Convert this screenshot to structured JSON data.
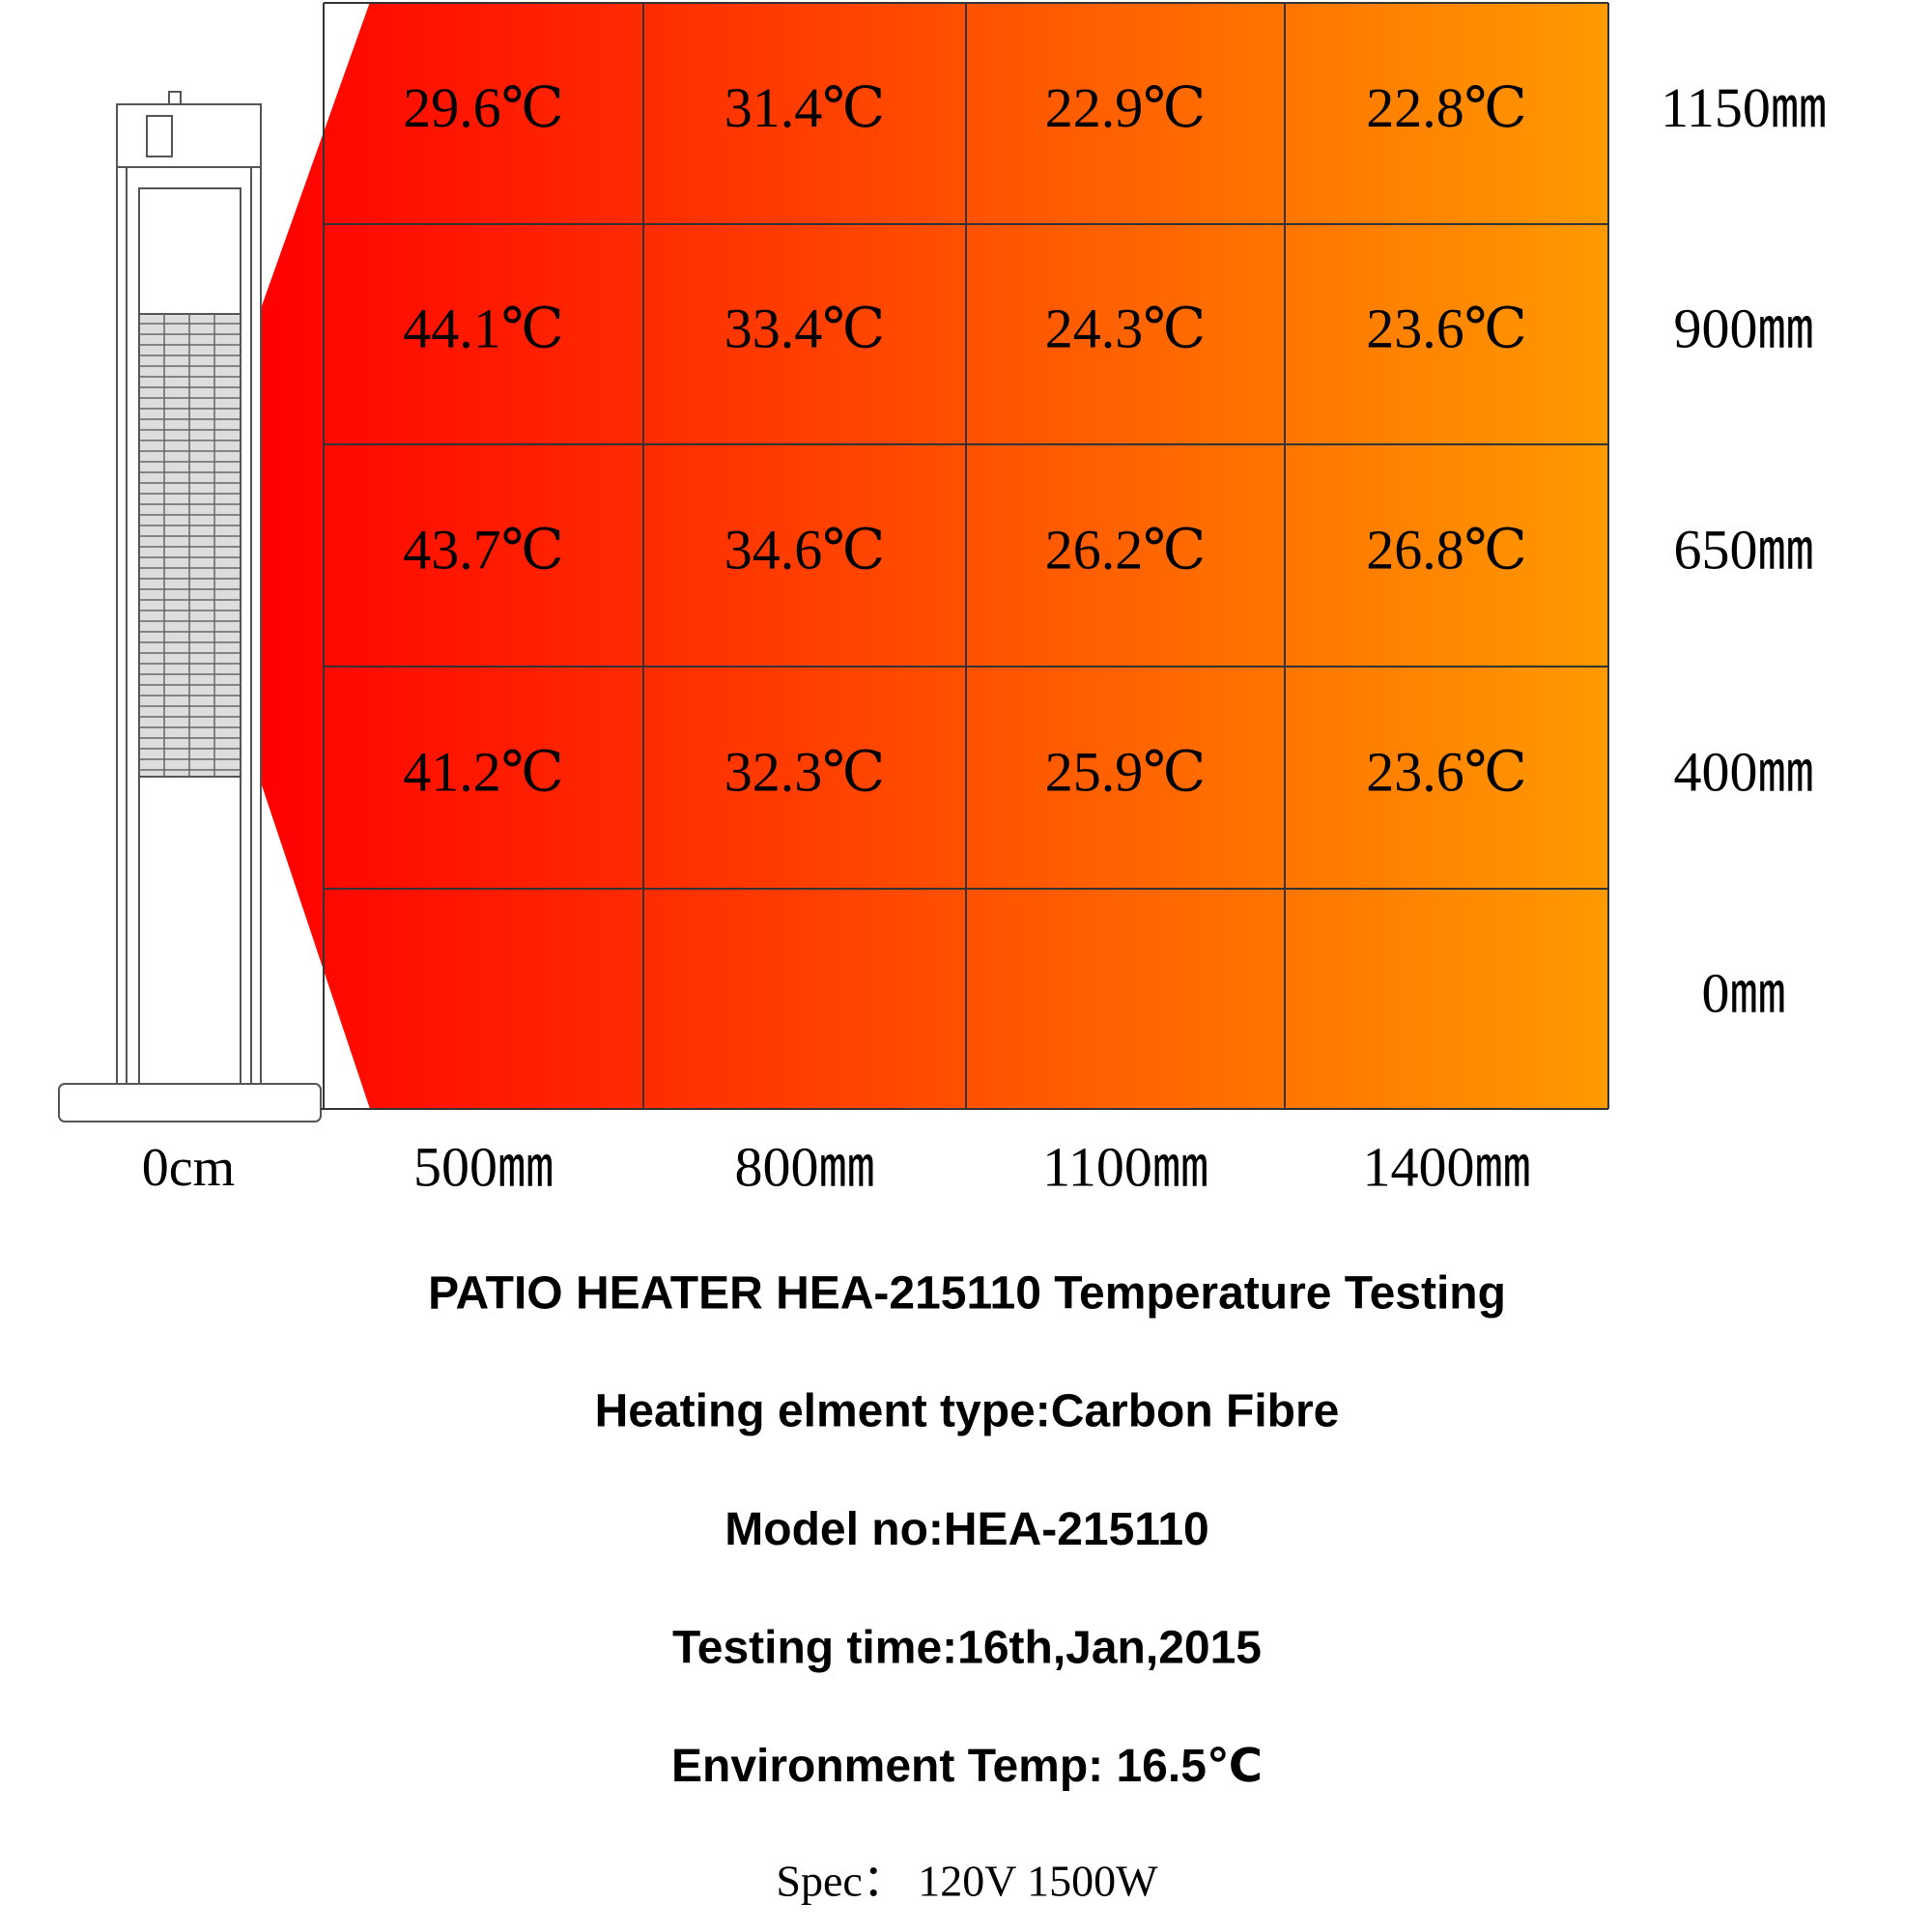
{
  "grid": {
    "column_labels": [
      "500㎜",
      "800㎜",
      "1100㎜",
      "1400㎜"
    ],
    "row_labels": [
      "1150㎜",
      "900㎜",
      "650㎜",
      "400㎜",
      "0㎜"
    ],
    "rows": [
      [
        "29.6℃",
        "31.4℃",
        "22.9℃",
        "22.8℃"
      ],
      [
        "44.1℃",
        "33.4℃",
        "24.3℃",
        "23.6℃"
      ],
      [
        "43.7℃",
        "34.6℃",
        "26.2℃",
        "26.8℃"
      ],
      [
        "41.2℃",
        "32.3℃",
        "25.9℃",
        "23.6℃"
      ]
    ]
  },
  "heater_label": "0cm",
  "title": "PATIO HEATER HEA-215110 Temperature Testing",
  "details": [
    "Heating elment type:Carbon Fibre",
    "Model no:HEA-215110",
    "Testing time:16th,Jan,2015",
    "Environment Temp: 16.5℃"
  ],
  "spec": "Spec： 120V 1500W"
}
